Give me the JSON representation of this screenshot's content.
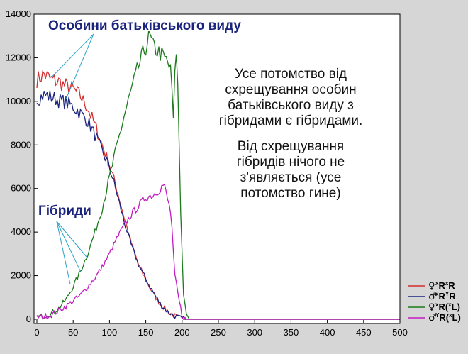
{
  "chart_data": {
    "type": "line",
    "x_range": [
      0,
      500
    ],
    "y_range": [
      0,
      14000
    ],
    "x_ticks": [
      "0",
      "50",
      "100",
      "150",
      "200",
      "250",
      "300",
      "350",
      "400",
      "450",
      "500"
    ],
    "y_ticks": [
      "0",
      "2000",
      "4000",
      "6000",
      "8000",
      "10000",
      "12000",
      "14000"
    ],
    "grid": false,
    "legend_position": "bottom-right",
    "series": [
      {
        "key": "s1",
        "symbol": "♀",
        "sup1": "x",
        "main1": "R",
        "sup2": "x",
        "main2": "R",
        "tail": "",
        "color": "#d32f2f",
        "points": [
          [
            0,
            11000
          ],
          [
            10,
            11250
          ],
          [
            20,
            11000
          ],
          [
            30,
            10900
          ],
          [
            40,
            10700
          ],
          [
            50,
            10550
          ],
          [
            60,
            10250
          ],
          [
            70,
            9700
          ],
          [
            80,
            8900
          ],
          [
            90,
            8000
          ],
          [
            100,
            7100
          ],
          [
            110,
            6000
          ],
          [
            120,
            4700
          ],
          [
            130,
            3500
          ],
          [
            140,
            2500
          ],
          [
            150,
            1800
          ],
          [
            160,
            1200
          ],
          [
            170,
            700
          ],
          [
            180,
            350
          ],
          [
            190,
            150
          ],
          [
            195,
            80
          ],
          [
            200,
            20
          ],
          [
            205,
            0
          ],
          [
            500,
            0
          ]
        ]
      },
      {
        "key": "s2",
        "symbol": "♂",
        "sup1": "x",
        "main1": "R",
        "sup2": "Y",
        "main2": "R",
        "tail": "",
        "color": "#1a237e",
        "points": [
          [
            0,
            10100
          ],
          [
            10,
            10300
          ],
          [
            20,
            10200
          ],
          [
            30,
            10050
          ],
          [
            40,
            9950
          ],
          [
            50,
            9750
          ],
          [
            60,
            9450
          ],
          [
            70,
            9100
          ],
          [
            80,
            8450
          ],
          [
            90,
            7700
          ],
          [
            100,
            7000
          ],
          [
            110,
            5800
          ],
          [
            120,
            4500
          ],
          [
            130,
            3400
          ],
          [
            140,
            2500
          ],
          [
            150,
            1850
          ],
          [
            160,
            1250
          ],
          [
            170,
            700
          ],
          [
            180,
            350
          ],
          [
            190,
            150
          ],
          [
            195,
            80
          ],
          [
            200,
            20
          ],
          [
            205,
            0
          ],
          [
            500,
            0
          ]
        ]
      },
      {
        "key": "s3",
        "symbol": "♀",
        "sup1": "x",
        "main1": "R(",
        "sup2": "x",
        "main2": "L)",
        "tail": "",
        "color": "#1b7a1b",
        "points": [
          [
            0,
            100
          ],
          [
            10,
            150
          ],
          [
            20,
            280
          ],
          [
            30,
            500
          ],
          [
            40,
            900
          ],
          [
            50,
            1500
          ],
          [
            60,
            2200
          ],
          [
            70,
            3000
          ],
          [
            80,
            4000
          ],
          [
            90,
            5100
          ],
          [
            100,
            6500
          ],
          [
            110,
            7900
          ],
          [
            120,
            9300
          ],
          [
            130,
            10500
          ],
          [
            140,
            11600
          ],
          [
            150,
            12500
          ],
          [
            155,
            13000
          ],
          [
            160,
            12500
          ],
          [
            170,
            12200
          ],
          [
            180,
            11800
          ],
          [
            185,
            11300
          ],
          [
            188,
            9000
          ],
          [
            190,
            11600
          ],
          [
            193,
            12200
          ],
          [
            195,
            9500
          ],
          [
            198,
            5000
          ],
          [
            200,
            3000
          ],
          [
            202,
            1200
          ],
          [
            205,
            300
          ],
          [
            210,
            0
          ],
          [
            500,
            0
          ]
        ]
      },
      {
        "key": "s4",
        "symbol": "♂",
        "sup1": "Y",
        "main1": "R(",
        "sup2": "x",
        "main2": "L)",
        "tail": "",
        "color": "#c21bc2",
        "points": [
          [
            0,
            100
          ],
          [
            10,
            120
          ],
          [
            20,
            200
          ],
          [
            30,
            400
          ],
          [
            40,
            600
          ],
          [
            50,
            850
          ],
          [
            60,
            1100
          ],
          [
            70,
            1500
          ],
          [
            80,
            1900
          ],
          [
            90,
            2400
          ],
          [
            100,
            3000
          ],
          [
            110,
            3700
          ],
          [
            120,
            4300
          ],
          [
            130,
            4800
          ],
          [
            140,
            5200
          ],
          [
            150,
            5600
          ],
          [
            160,
            5700
          ],
          [
            170,
            6000
          ],
          [
            175,
            6200
          ],
          [
            180,
            5500
          ],
          [
            185,
            4800
          ],
          [
            188,
            3000
          ],
          [
            190,
            2000
          ],
          [
            195,
            1000
          ],
          [
            198,
            500
          ],
          [
            200,
            150
          ],
          [
            205,
            0
          ],
          [
            500,
            0
          ]
        ]
      }
    ],
    "annotations": [
      {
        "key": "parents",
        "text": "Особини батьківського виду",
        "color": "#1a237e"
      },
      {
        "key": "hybrids",
        "text": "Гібриди",
        "color": "#1a237e"
      }
    ],
    "note": {
      "para1": "Усе потомство від схрещування особин батьківського виду з гібридами є гібридами.",
      "para2": "Від схрещування гібридів нічого не з'являється (усе потомство гине)"
    }
  }
}
